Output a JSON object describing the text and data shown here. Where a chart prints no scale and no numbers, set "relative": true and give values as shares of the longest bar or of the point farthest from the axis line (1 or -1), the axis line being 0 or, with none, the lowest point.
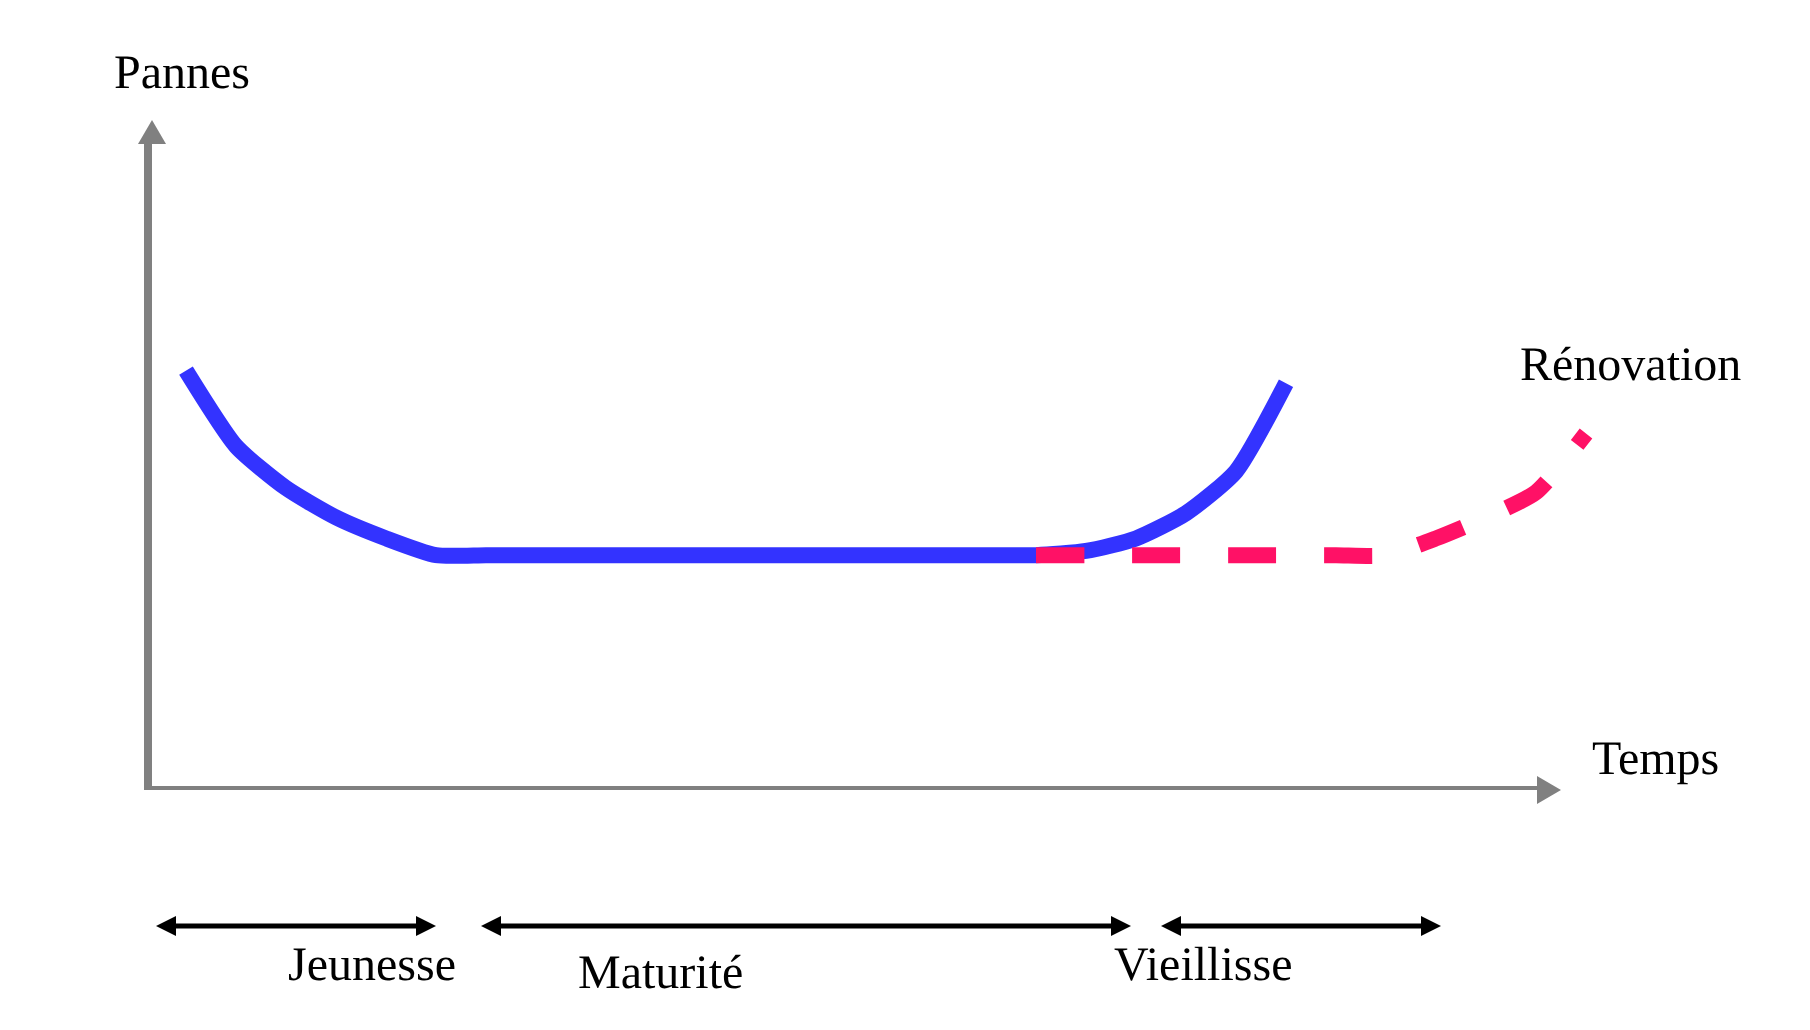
{
  "chart_data": {
    "type": "line",
    "relative": true,
    "xlabel": "Temps",
    "legend": false,
    "grid": false,
    "marker": "none",
    "categories": [
      null,
      null,
      null,
      null,
      null,
      null,
      null,
      null,
      null,
      null,
      null,
      null,
      null,
      null,
      null,
      null,
      null,
      null,
      null,
      null,
      null,
      null,
      null,
      null,
      null,
      null,
      null,
      null,
      null
    ],
    "series": [
      {
        "color": "#3333ff",
        "line_style": "solid",
        "values": [
          1.0,
          0.82,
          0.72,
          0.65,
          0.6,
          0.56,
          0.56,
          0.56,
          0.56,
          0.56,
          0.56,
          0.56,
          0.56,
          0.56,
          0.56,
          0.56,
          0.56,
          0.56,
          0.57,
          0.6,
          0.66,
          0.76,
          0.97,
          null,
          null,
          null,
          null,
          null,
          null
        ]
      },
      {
        "name": "Rénovation",
        "color": "#ff1166",
        "line_style": "dashed",
        "values": [
          null,
          null,
          null,
          null,
          null,
          null,
          null,
          null,
          null,
          null,
          null,
          null,
          null,
          null,
          null,
          null,
          null,
          0.56,
          0.56,
          0.56,
          0.56,
          0.56,
          0.56,
          0.56,
          0.56,
          0.6,
          0.65,
          0.71,
          0.85
        ]
      }
    ],
    "annotations": [
      "Pannes",
      "Jeunesse",
      "Maturité",
      "Vieillisse"
    ]
  }
}
